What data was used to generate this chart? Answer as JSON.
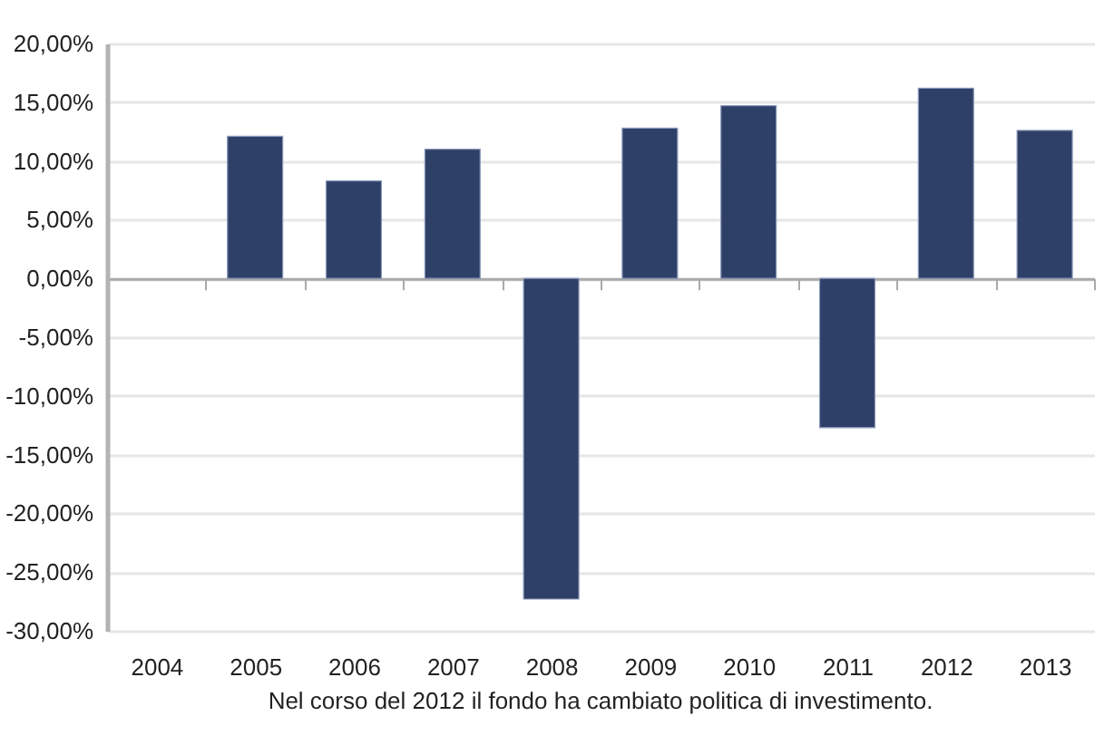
{
  "chart_data": {
    "type": "bar",
    "categories": [
      "2004",
      "2005",
      "2006",
      "2007",
      "2008",
      "2009",
      "2010",
      "2011",
      "2012",
      "2013"
    ],
    "values": [
      null,
      12.1,
      8.3,
      11.0,
      -27.3,
      12.8,
      14.7,
      -12.7,
      16.2,
      12.6
    ],
    "color": "#2e4068",
    "ylim": [
      -30,
      20
    ],
    "yticks": [
      {
        "value": -30,
        "label": "-30,00%"
      },
      {
        "value": -25,
        "label": "-25,00%"
      },
      {
        "value": -20,
        "label": "-20,00%"
      },
      {
        "value": -15,
        "label": "-15,00%"
      },
      {
        "value": -10,
        "label": "-10,00%"
      },
      {
        "value": -5,
        "label": "-5,00%"
      },
      {
        "value": 0,
        "label": "0,00%"
      },
      {
        "value": 5,
        "label": "5,00%"
      },
      {
        "value": 10,
        "label": "10,00%"
      },
      {
        "value": 15,
        "label": "15,00%"
      },
      {
        "value": 20,
        "label": "20,00%"
      }
    ],
    "grid": "y",
    "annotations": [
      "Nel corso del 2012 il fondo ha cambiato politica di investimento."
    ]
  }
}
